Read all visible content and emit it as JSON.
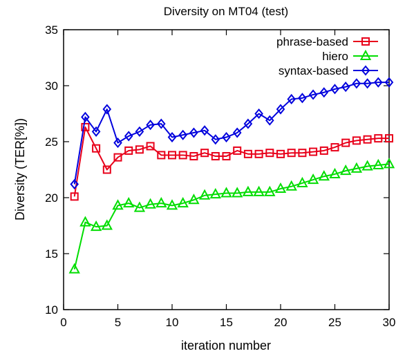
{
  "chart_data": {
    "type": "line",
    "title": "Diversity on MT04 (test)",
    "xlabel": "iteration number",
    "ylabel": "Diversity (TER[%])",
    "xlim": [
      0,
      30
    ],
    "ylim": [
      10,
      35
    ],
    "xticks": [
      0,
      5,
      10,
      15,
      20,
      25,
      30
    ],
    "yticks": [
      10,
      15,
      20,
      25,
      30,
      35
    ],
    "grid": false,
    "legend_position": "top-right",
    "series": [
      {
        "name": "phrase-based",
        "color": "#e8001a",
        "marker": "square",
        "x": [
          1,
          2,
          3,
          4,
          5,
          6,
          7,
          8,
          9,
          10,
          11,
          12,
          13,
          14,
          15,
          16,
          17,
          18,
          19,
          20,
          21,
          22,
          23,
          24,
          25,
          26,
          27,
          28,
          29,
          30
        ],
        "values": [
          20.1,
          26.3,
          24.4,
          22.5,
          23.6,
          24.2,
          24.3,
          24.6,
          23.8,
          23.8,
          23.8,
          23.7,
          24.0,
          23.7,
          23.7,
          24.2,
          23.9,
          23.9,
          24.0,
          23.9,
          24.0,
          24.0,
          24.1,
          24.2,
          24.5,
          24.9,
          25.1,
          25.2,
          25.3,
          25.3
        ]
      },
      {
        "name": "hiero",
        "color": "#00dd00",
        "marker": "triangle",
        "x": [
          1,
          2,
          3,
          4,
          5,
          6,
          7,
          8,
          9,
          10,
          11,
          12,
          13,
          14,
          15,
          16,
          17,
          18,
          19,
          20,
          21,
          22,
          23,
          24,
          25,
          26,
          27,
          28,
          29,
          30
        ],
        "values": [
          13.6,
          17.8,
          17.4,
          17.5,
          19.3,
          19.5,
          19.1,
          19.4,
          19.5,
          19.3,
          19.5,
          19.8,
          20.2,
          20.3,
          20.4,
          20.4,
          20.5,
          20.5,
          20.5,
          20.8,
          21.0,
          21.3,
          21.6,
          21.9,
          22.1,
          22.4,
          22.6,
          22.8,
          22.9,
          23.0
        ]
      },
      {
        "name": "syntax-based",
        "color": "#0000dd",
        "marker": "diamond",
        "x": [
          1,
          2,
          3,
          4,
          5,
          6,
          7,
          8,
          9,
          10,
          11,
          12,
          13,
          14,
          15,
          16,
          17,
          18,
          19,
          20,
          21,
          22,
          23,
          24,
          25,
          26,
          27,
          28,
          29,
          30
        ],
        "values": [
          21.2,
          27.2,
          25.9,
          27.9,
          24.9,
          25.5,
          25.9,
          26.5,
          26.6,
          25.4,
          25.6,
          25.8,
          26.0,
          25.2,
          25.4,
          25.8,
          26.6,
          27.5,
          26.9,
          27.9,
          28.8,
          28.9,
          29.2,
          29.4,
          29.7,
          29.9,
          30.2,
          30.2,
          30.3,
          30.3
        ]
      }
    ]
  }
}
